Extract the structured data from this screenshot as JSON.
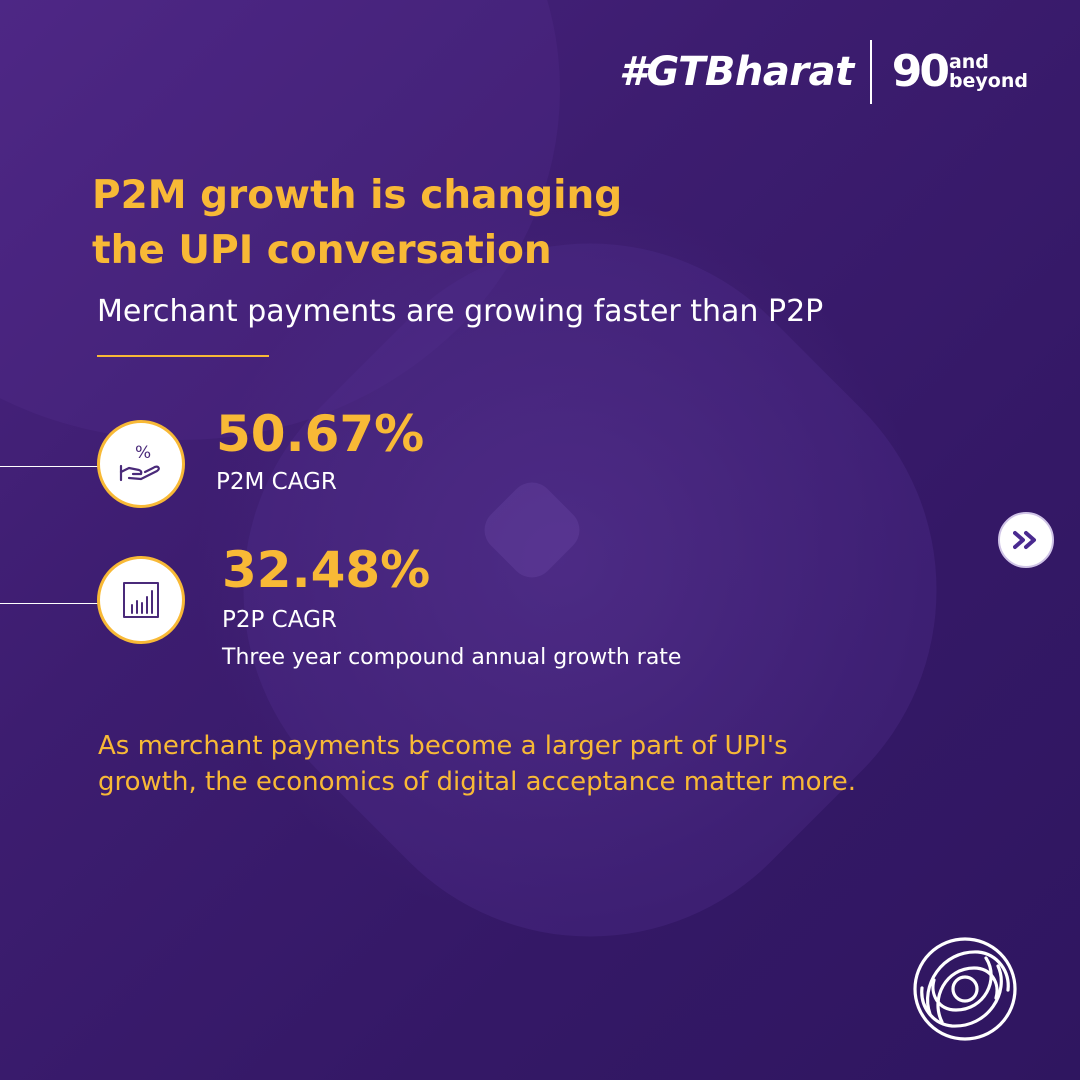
{
  "header": {
    "hashtag": "#GTBharat",
    "anniversary": {
      "number": "90",
      "word_top": "and",
      "word_bottom": "beyond"
    }
  },
  "headline": {
    "title_line1": "P2M growth is changing",
    "title_line2": "the UPI conversation",
    "subtitle": "Merchant payments are growing faster than P2P"
  },
  "stats": [
    {
      "value": "50.67%",
      "label": "P2M CAGR",
      "icon": "percent-hand-icon"
    },
    {
      "value": "32.48%",
      "label": "P2P CAGR",
      "note": "Three year compound annual growth rate",
      "icon": "bar-chart-icon"
    }
  ],
  "body": {
    "line1": "As merchant payments become a larger part of UPI's",
    "line2": "growth, the economics of digital acceptance matter more."
  },
  "navigation": {
    "next_icon": "double-chevron-right-icon"
  },
  "colors": {
    "background": "#3b1c6b",
    "accent": "#f8b936",
    "text": "#ffffff",
    "icon_stroke": "#4a2a7a"
  }
}
